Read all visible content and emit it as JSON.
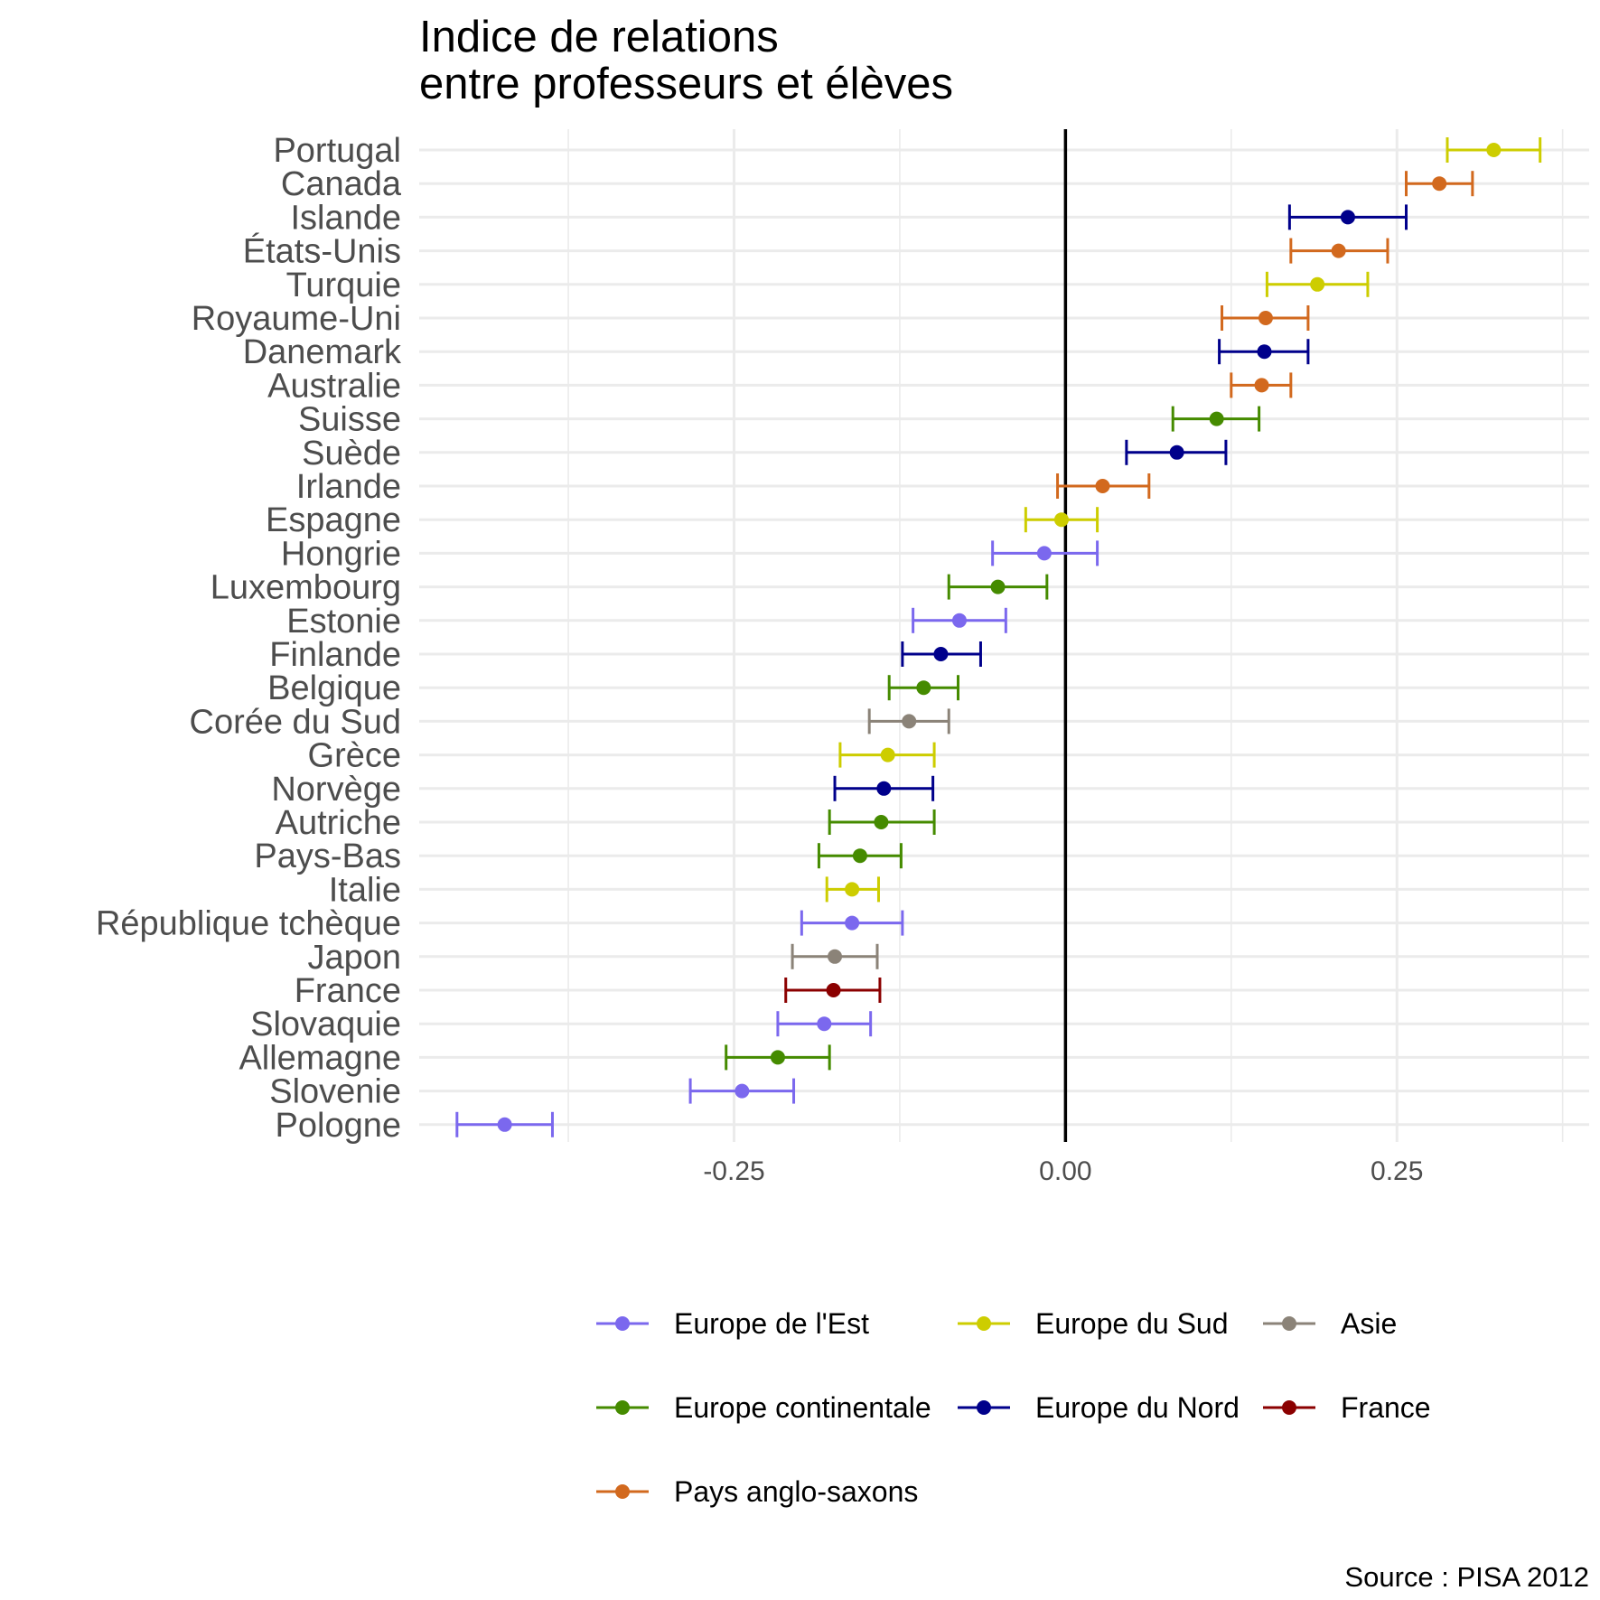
{
  "chart_data": {
    "type": "errorbar",
    "title": "Indice de relations\nentre professeurs et élèves",
    "caption": "Source : PISA 2012",
    "xlabel": "",
    "ylabel": "",
    "xlim": [
      -0.4875,
      0.395
    ],
    "x_ticks": [
      -0.25,
      0.0,
      0.25
    ],
    "x_tick_labels": [
      "-0.25",
      "0.00",
      "0.25"
    ],
    "reference_line_x": 0.0,
    "grid": true,
    "legend_position": "bottom",
    "groups": [
      {
        "name": "Europe de l'Est",
        "color": "#7b68ee"
      },
      {
        "name": "Europe du Sud",
        "color": "#cdcd00"
      },
      {
        "name": "Asie",
        "color": "#8b8378"
      },
      {
        "name": "Europe continentale",
        "color": "#458b00"
      },
      {
        "name": "Europe du Nord",
        "color": "#00008b"
      },
      {
        "name": "France",
        "color": "#8b0000"
      },
      {
        "name": "Pays anglo-saxons",
        "color": "#d2691e"
      }
    ],
    "points": [
      {
        "country": "Portugal",
        "group": "Europe du Sud",
        "value": 0.323,
        "low": 0.288,
        "high": 0.358
      },
      {
        "country": "Canada",
        "group": "Pays anglo-saxons",
        "value": 0.282,
        "low": 0.257,
        "high": 0.307
      },
      {
        "country": "Islande",
        "group": "Europe du Nord",
        "value": 0.213,
        "low": 0.169,
        "high": 0.257
      },
      {
        "country": "États-Unis",
        "group": "Pays anglo-saxons",
        "value": 0.206,
        "low": 0.17,
        "high": 0.243
      },
      {
        "country": "Turquie",
        "group": "Europe du Sud",
        "value": 0.19,
        "low": 0.152,
        "high": 0.228
      },
      {
        "country": "Royaume-Uni",
        "group": "Pays anglo-saxons",
        "value": 0.151,
        "low": 0.118,
        "high": 0.183
      },
      {
        "country": "Danemark",
        "group": "Europe du Nord",
        "value": 0.15,
        "low": 0.116,
        "high": 0.183
      },
      {
        "country": "Australie",
        "group": "Pays anglo-saxons",
        "value": 0.148,
        "low": 0.125,
        "high": 0.17
      },
      {
        "country": "Suisse",
        "group": "Europe continentale",
        "value": 0.114,
        "low": 0.081,
        "high": 0.146
      },
      {
        "country": "Suède",
        "group": "Europe du Nord",
        "value": 0.084,
        "low": 0.046,
        "high": 0.121
      },
      {
        "country": "Irlande",
        "group": "Pays anglo-saxons",
        "value": 0.028,
        "low": -0.006,
        "high": 0.063
      },
      {
        "country": "Espagne",
        "group": "Europe du Sud",
        "value": -0.003,
        "low": -0.03,
        "high": 0.024
      },
      {
        "country": "Hongrie",
        "group": "Europe de l'Est",
        "value": -0.016,
        "low": -0.055,
        "high": 0.024
      },
      {
        "country": "Luxembourg",
        "group": "Europe continentale",
        "value": -0.051,
        "low": -0.088,
        "high": -0.014
      },
      {
        "country": "Estonie",
        "group": "Europe de l'Est",
        "value": -0.08,
        "low": -0.115,
        "high": -0.045
      },
      {
        "country": "Finlande",
        "group": "Europe du Nord",
        "value": -0.094,
        "low": -0.123,
        "high": -0.064
      },
      {
        "country": "Belgique",
        "group": "Europe continentale",
        "value": -0.107,
        "low": -0.133,
        "high": -0.081
      },
      {
        "country": "Corée du Sud",
        "group": "Asie",
        "value": -0.118,
        "low": -0.148,
        "high": -0.088
      },
      {
        "country": "Grèce",
        "group": "Europe du Sud",
        "value": -0.134,
        "low": -0.17,
        "high": -0.099
      },
      {
        "country": "Norvège",
        "group": "Europe du Nord",
        "value": -0.137,
        "low": -0.174,
        "high": -0.1
      },
      {
        "country": "Autriche",
        "group": "Europe continentale",
        "value": -0.139,
        "low": -0.178,
        "high": -0.099
      },
      {
        "country": "Pays-Bas",
        "group": "Europe continentale",
        "value": -0.155,
        "low": -0.186,
        "high": -0.124
      },
      {
        "country": "Italie",
        "group": "Europe du Sud",
        "value": -0.161,
        "low": -0.18,
        "high": -0.141
      },
      {
        "country": "République tchèque",
        "group": "Europe de l'Est",
        "value": -0.161,
        "low": -0.199,
        "high": -0.123
      },
      {
        "country": "Japon",
        "group": "Asie",
        "value": -0.174,
        "low": -0.206,
        "high": -0.142
      },
      {
        "country": "France",
        "group": "France",
        "value": -0.175,
        "low": -0.211,
        "high": -0.14
      },
      {
        "country": "Slovaquie",
        "group": "Europe de l'Est",
        "value": -0.182,
        "low": -0.217,
        "high": -0.147
      },
      {
        "country": "Allemagne",
        "group": "Europe continentale",
        "value": -0.217,
        "low": -0.256,
        "high": -0.178
      },
      {
        "country": "Slovenie",
        "group": "Europe de l'Est",
        "value": -0.244,
        "low": -0.283,
        "high": -0.205
      },
      {
        "country": "Pologne",
        "group": "Europe de l'Est",
        "value": -0.423,
        "low": -0.459,
        "high": -0.387
      }
    ]
  }
}
